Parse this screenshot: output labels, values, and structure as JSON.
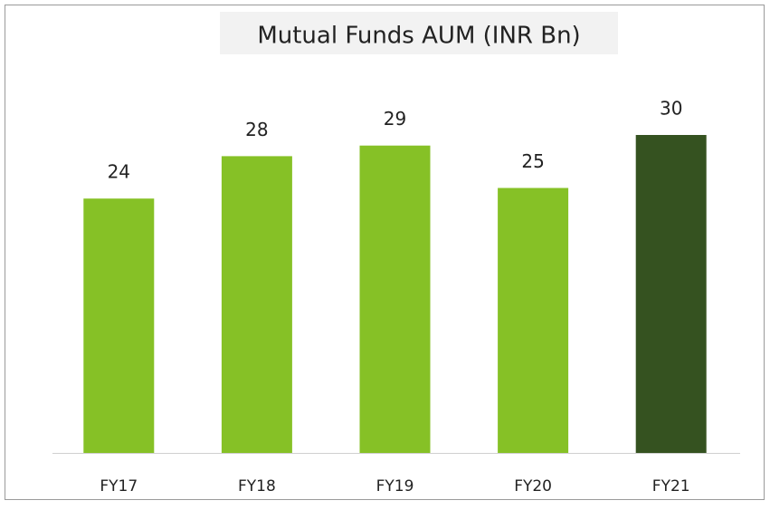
{
  "chart_data": {
    "type": "bar",
    "title": "Mutual Funds AUM (INR Bn)",
    "categories": [
      "FY17",
      "FY18",
      "FY19",
      "FY20",
      "FY21"
    ],
    "values": [
      24,
      28,
      29,
      25,
      30
    ],
    "colors": [
      "#86c126",
      "#86c126",
      "#86c126",
      "#86c126",
      "#355220"
    ]
  }
}
